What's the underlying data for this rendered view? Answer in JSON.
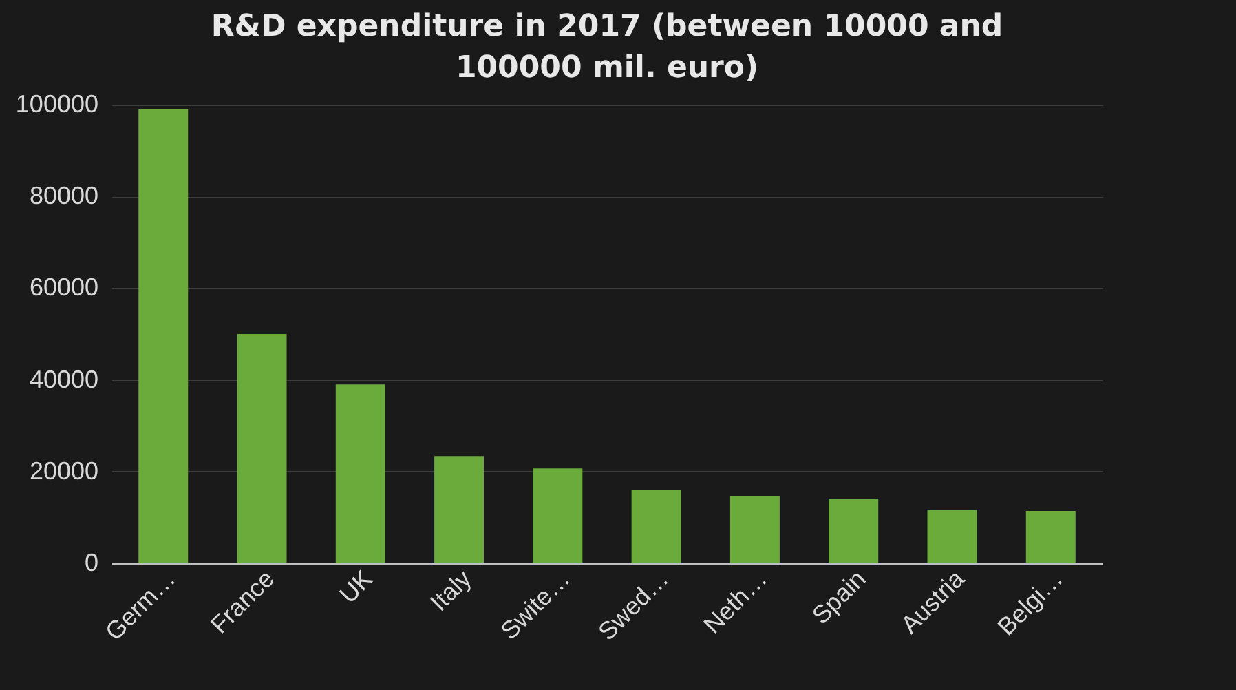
{
  "chart_data": {
    "type": "bar",
    "title": "R&D expenditure in 2017 (between 10000 and 100000 mil. euro)",
    "categories": [
      "Germ…",
      "France",
      "UK",
      "Italy",
      "Swite…",
      "Swed…",
      "Neth…",
      "Spain",
      "Austria",
      "Belgi…"
    ],
    "values": [
      99000,
      50000,
      39000,
      23400,
      20700,
      15900,
      14700,
      14100,
      11700,
      11400
    ],
    "color": "#6aab3c",
    "ylim": [
      0,
      100000
    ],
    "yticks": [
      0,
      20000,
      40000,
      60000,
      80000,
      100000
    ],
    "grid": "y"
  }
}
